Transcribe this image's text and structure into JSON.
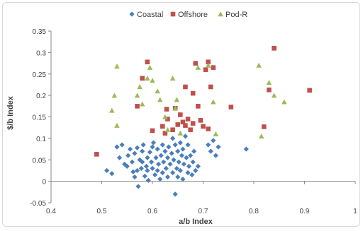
{
  "chart_data": {
    "type": "scatter",
    "title": "",
    "xlabel": "a/b Index",
    "ylabel": "$/b Index",
    "xlim": [
      0.4,
      1.0
    ],
    "ylim": [
      -0.05,
      0.35
    ],
    "xticks": [
      "0.4",
      "0.5",
      "0.6",
      "0.7",
      "0.8",
      "0.9",
      "1"
    ],
    "yticks": [
      "-0.05",
      "0",
      "0.05",
      "0.1",
      "0.15",
      "0.2",
      "0.25",
      "0.3",
      "0.35"
    ],
    "grid": false,
    "legend_position": "top",
    "series": [
      {
        "name": "Coastal",
        "color": "#4a7ebb",
        "marker": "diamond",
        "points": [
          [
            0.51,
            0.025
          ],
          [
            0.52,
            0.018
          ],
          [
            0.53,
            0.08
          ],
          [
            0.535,
            0.055
          ],
          [
            0.54,
            0.085
          ],
          [
            0.545,
            0.04
          ],
          [
            0.55,
            0.035
          ],
          [
            0.552,
            0.06
          ],
          [
            0.556,
            0.075
          ],
          [
            0.56,
            0.045
          ],
          [
            0.562,
            0.022
          ],
          [
            0.565,
            0.01
          ],
          [
            0.565,
            0.065
          ],
          [
            0.57,
            0.078
          ],
          [
            0.57,
            0.025
          ],
          [
            0.572,
            -0.012
          ],
          [
            0.575,
            0.05
          ],
          [
            0.578,
            0.03
          ],
          [
            0.58,
            0.045
          ],
          [
            0.58,
            0.07
          ],
          [
            0.582,
            0.085
          ],
          [
            0.585,
            0.012
          ],
          [
            0.588,
            0.035
          ],
          [
            0.59,
            0.055
          ],
          [
            0.59,
            0.025
          ],
          [
            0.592,
            0.002
          ],
          [
            0.595,
            0.068
          ],
          [
            0.598,
            0.045
          ],
          [
            0.6,
            0.08
          ],
          [
            0.6,
            0.03
          ],
          [
            0.602,
            0.09
          ],
          [
            0.605,
            0.015
          ],
          [
            0.607,
            0.055
          ],
          [
            0.61,
            0.025
          ],
          [
            0.61,
            0.075
          ],
          [
            0.612,
            0.04
          ],
          [
            0.615,
            0.005
          ],
          [
            0.617,
            0.06
          ],
          [
            0.62,
            0.02
          ],
          [
            0.62,
            0.085
          ],
          [
            0.622,
            0.045
          ],
          [
            0.625,
            0.07
          ],
          [
            0.627,
            0.03
          ],
          [
            0.63,
            0.01
          ],
          [
            0.63,
            0.055
          ],
          [
            0.632,
            0.08
          ],
          [
            0.635,
            0.04
          ],
          [
            0.638,
            0.065
          ],
          [
            0.64,
            0.02
          ],
          [
            0.64,
            0.1
          ],
          [
            0.642,
            0.05
          ],
          [
            0.645,
            0.085
          ],
          [
            0.645,
            -0.03
          ],
          [
            0.648,
            0.03
          ],
          [
            0.65,
            0.07
          ],
          [
            0.65,
            0.01
          ],
          [
            0.652,
            0.045
          ],
          [
            0.655,
            0.09
          ],
          [
            0.655,
            0.025
          ],
          [
            0.658,
            0.06
          ],
          [
            0.66,
            0.005
          ],
          [
            0.66,
            0.075
          ],
          [
            0.662,
            0.04
          ],
          [
            0.665,
            0.105
          ],
          [
            0.667,
            0.055
          ],
          [
            0.67,
            0.02
          ],
          [
            0.67,
            0.085
          ],
          [
            0.672,
            0.035
          ],
          [
            0.675,
            0.06
          ],
          [
            0.678,
            0.015
          ],
          [
            0.68,
            0.045
          ],
          [
            0.682,
            0.07
          ],
          [
            0.685,
            0.025
          ],
          [
            0.69,
            0.035
          ],
          [
            0.71,
            0.085
          ],
          [
            0.715,
            0.07
          ],
          [
            0.72,
            0.095
          ],
          [
            0.725,
            0.06
          ],
          [
            0.73,
            0.08
          ],
          [
            0.785,
            0.075
          ]
        ]
      },
      {
        "name": "Offshore",
        "color": "#c0504d",
        "marker": "square",
        "points": [
          [
            0.49,
            0.063
          ],
          [
            0.57,
            0.175
          ],
          [
            0.58,
            0.24
          ],
          [
            0.59,
            0.278
          ],
          [
            0.6,
            0.118
          ],
          [
            0.62,
            0.128
          ],
          [
            0.625,
            0.112
          ],
          [
            0.628,
            0.168
          ],
          [
            0.63,
            0.145
          ],
          [
            0.64,
            0.12
          ],
          [
            0.645,
            0.17
          ],
          [
            0.65,
            0.132
          ],
          [
            0.655,
            0.155
          ],
          [
            0.66,
            0.138
          ],
          [
            0.665,
            0.22
          ],
          [
            0.665,
            0.13
          ],
          [
            0.67,
            0.145
          ],
          [
            0.675,
            0.12
          ],
          [
            0.68,
            0.205
          ],
          [
            0.68,
            0.135
          ],
          [
            0.685,
            0.275
          ],
          [
            0.69,
            0.175
          ],
          [
            0.695,
            0.142
          ],
          [
            0.7,
            0.128
          ],
          [
            0.705,
            0.26
          ],
          [
            0.71,
            0.122
          ],
          [
            0.71,
            0.278
          ],
          [
            0.715,
            0.22
          ],
          [
            0.72,
            0.265
          ],
          [
            0.755,
            0.173
          ],
          [
            0.82,
            0.127
          ],
          [
            0.83,
            0.213
          ],
          [
            0.84,
            0.31
          ],
          [
            0.91,
            0.212
          ]
        ]
      },
      {
        "name": "Pod-R",
        "color": "#9bbb59",
        "marker": "triangle",
        "points": [
          [
            0.52,
            0.165
          ],
          [
            0.525,
            0.2
          ],
          [
            0.53,
            0.268
          ],
          [
            0.53,
            0.13
          ],
          [
            0.57,
            0.2
          ],
          [
            0.575,
            0.22
          ],
          [
            0.58,
            0.18
          ],
          [
            0.59,
            0.24
          ],
          [
            0.595,
            0.265
          ],
          [
            0.6,
            0.235
          ],
          [
            0.61,
            0.21
          ],
          [
            0.615,
            0.19
          ],
          [
            0.625,
            0.15
          ],
          [
            0.63,
            0.12
          ],
          [
            0.64,
            0.24
          ],
          [
            0.645,
            0.17
          ],
          [
            0.648,
            0.19
          ],
          [
            0.655,
            0.112
          ],
          [
            0.69,
            0.265
          ],
          [
            0.71,
            0.27
          ],
          [
            0.72,
            0.185
          ],
          [
            0.725,
            0.11
          ],
          [
            0.81,
            0.27
          ],
          [
            0.815,
            0.105
          ],
          [
            0.83,
            0.23
          ],
          [
            0.84,
            0.2
          ],
          [
            0.86,
            0.185
          ]
        ]
      }
    ]
  }
}
